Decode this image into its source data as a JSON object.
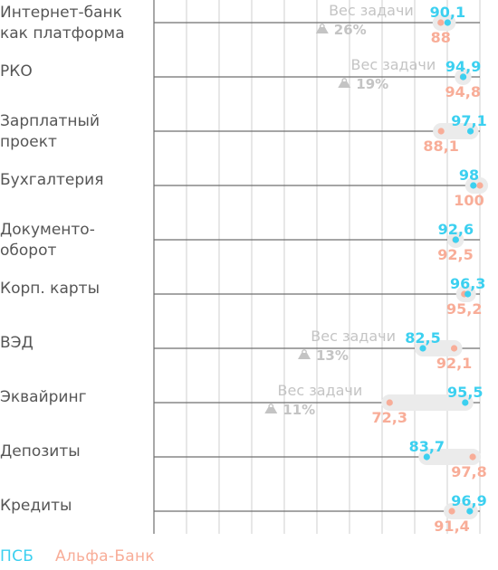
{
  "chart_data": {
    "type": "scatter",
    "orientation": "horizontal",
    "weight_label": "Вес задачи",
    "series": [
      {
        "name": "ПСБ",
        "color": "#3cd0f0"
      },
      {
        "name": "Альфа-Банк",
        "color": "#f8ad98"
      }
    ],
    "categories": [
      {
        "label": [
          "Интернет-банк",
          "как платформа"
        ],
        "psb": 90.1,
        "psb_text": "90,1",
        "alfa": 88,
        "alfa_text": "88",
        "weight": "26%"
      },
      {
        "label": [
          "РКО"
        ],
        "psb": 94.9,
        "psb_text": "94,9",
        "alfa": 94.8,
        "alfa_text": "94,8",
        "weight": "19%"
      },
      {
        "label": [
          "Зарплатный",
          "проект"
        ],
        "psb": 97.1,
        "psb_text": "97,1",
        "alfa": 88.1,
        "alfa_text": "88,1",
        "weight": ""
      },
      {
        "label": [
          "Бухгалтерия"
        ],
        "psb": 98,
        "psb_text": "98",
        "alfa": 100,
        "alfa_text": "100",
        "weight": ""
      },
      {
        "label": [
          "Документо-",
          "оборот"
        ],
        "psb": 92.6,
        "psb_text": "92,6",
        "alfa": 92.5,
        "alfa_text": "92,5",
        "weight": ""
      },
      {
        "label": [
          "Корп. карты"
        ],
        "psb": 96.3,
        "psb_text": "96,3",
        "alfa": 95.2,
        "alfa_text": "95,2",
        "weight": ""
      },
      {
        "label": [
          "ВЭД"
        ],
        "psb": 82.5,
        "psb_text": "82,5",
        "alfa": 92.1,
        "alfa_text": "92,1",
        "weight": "13%"
      },
      {
        "label": [
          "Эквайринг"
        ],
        "psb": 95.5,
        "psb_text": "95,5",
        "alfa": 72.3,
        "alfa_text": "72,3",
        "weight": "11%"
      },
      {
        "label": [
          "Депозиты"
        ],
        "psb": 83.7,
        "psb_text": "83,7",
        "alfa": 97.8,
        "alfa_text": "97,8",
        "weight": ""
      },
      {
        "label": [
          "Кредиты"
        ],
        "psb": 96.9,
        "psb_text": "96,9",
        "alfa": 91.4,
        "alfa_text": "91,4",
        "weight": ""
      }
    ],
    "xlim": [
      0,
      100
    ],
    "grid": true,
    "legend_position": "bottom-left",
    "colors": {
      "psb": "#3cd0f0",
      "alfa": "#f8ad98",
      "axis": "#6f6f6f",
      "grid": "#cfcfcf",
      "weight": "#c4c4c4",
      "label": "#565656"
    }
  }
}
